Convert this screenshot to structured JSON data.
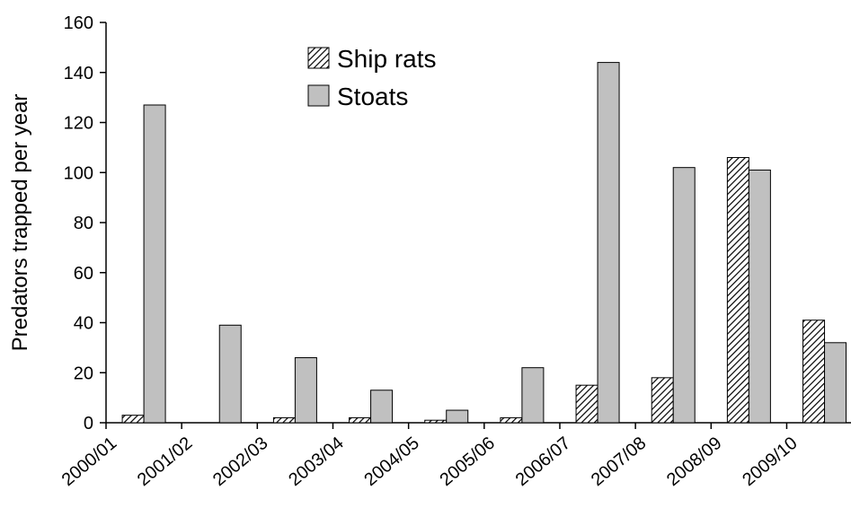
{
  "chart_data": {
    "type": "bar",
    "categories": [
      "2000/01",
      "2001/02",
      "2002/03",
      "2003/04",
      "2004/05",
      "2005/06",
      "2006/07",
      "2007/08",
      "2008/09",
      "2009/10"
    ],
    "series": [
      {
        "name": "Ship rats",
        "values": [
          3,
          0,
          2,
          2,
          1,
          2,
          15,
          18,
          106,
          41
        ],
        "pattern": "diagonal-hatch"
      },
      {
        "name": "Stoats",
        "values": [
          127,
          39,
          26,
          13,
          5,
          22,
          144,
          102,
          101,
          32
        ],
        "color": "#c0c0c0"
      }
    ],
    "xlabel": "",
    "ylabel": "Predators trapped per year",
    "ylim": [
      0,
      160
    ],
    "yticks": [
      0,
      20,
      40,
      60,
      80,
      100,
      120,
      140,
      160
    ],
    "grid": false,
    "legend_position": "top-center"
  }
}
